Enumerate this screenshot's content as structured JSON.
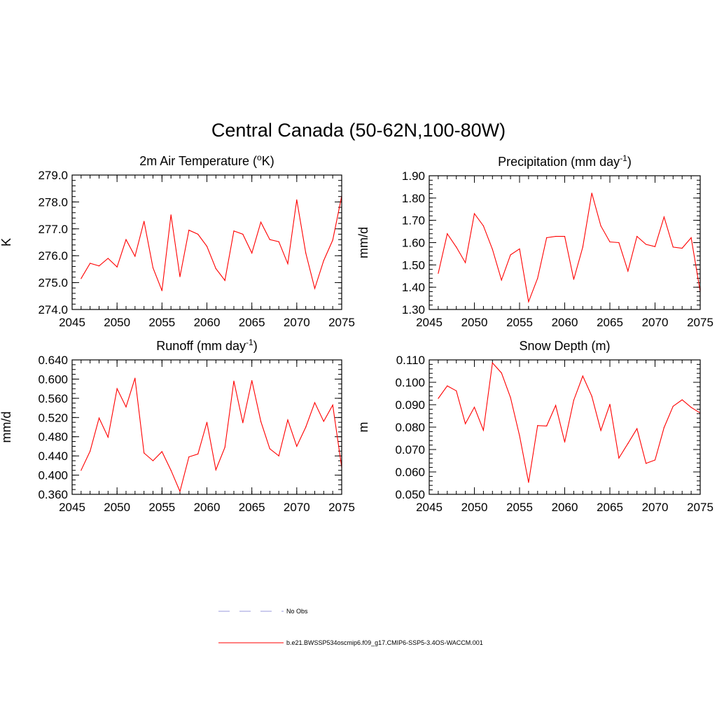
{
  "figure": {
    "title": "Central Canada (50-62N,100-80W)",
    "series_color": "#ff0000",
    "obs_color": "#9999dd"
  },
  "legend": {
    "items": [
      {
        "label": "No Obs",
        "style": "dashed",
        "color": "#9999dd"
      },
      {
        "label": "b.e21.BWSSP534oscmip6.f09_g17.CMIP6-SSP5-3.4OS-WACCM.001",
        "style": "solid",
        "color": "#ff0000"
      }
    ]
  },
  "chart_data": [
    {
      "type": "line",
      "title": "2m Air Temperature (",
      "title_sup": "o",
      "title_post": "K)",
      "ylabel": "K",
      "xlim": [
        2045,
        2075
      ],
      "ylim": [
        274.0,
        279.0
      ],
      "xticks": [
        2045,
        2050,
        2055,
        2060,
        2065,
        2070,
        2075
      ],
      "xtick_labels": [
        "2045",
        "2050",
        "2055",
        "2060",
        "2065",
        "2070",
        "2075"
      ],
      "yticks": [
        274.0,
        275.0,
        276.0,
        277.0,
        278.0,
        279.0
      ],
      "ytick_labels": [
        "274.0",
        "275.0",
        "276.0",
        "277.0",
        "278.0",
        "279.0"
      ],
      "yminor": 0.2,
      "x": [
        2046,
        2047,
        2048,
        2049,
        2050,
        2051,
        2052,
        2053,
        2054,
        2055,
        2056,
        2057,
        2058,
        2059,
        2060,
        2061,
        2062,
        2063,
        2064,
        2065,
        2066,
        2067,
        2068,
        2069,
        2070,
        2071,
        2072,
        2073,
        2074,
        2075
      ],
      "series": [
        {
          "values": [
            275.15,
            275.72,
            275.62,
            275.9,
            275.58,
            276.6,
            275.98,
            277.28,
            275.55,
            274.7,
            277.52,
            275.22,
            276.95,
            276.8,
            276.35,
            275.52,
            275.08,
            276.92,
            276.8,
            276.1,
            277.25,
            276.6,
            276.52,
            275.7,
            278.08,
            276.1,
            274.78,
            275.82,
            276.58,
            278.22
          ]
        }
      ]
    },
    {
      "type": "line",
      "title": "Precipitation (mm day",
      "title_sup": "-1",
      "title_post": ")",
      "ylabel": "mm/d",
      "xlim": [
        2045,
        2075
      ],
      "ylim": [
        1.3,
        1.9
      ],
      "xticks": [
        2045,
        2050,
        2055,
        2060,
        2065,
        2070,
        2075
      ],
      "xtick_labels": [
        "2045",
        "2050",
        "2055",
        "2060",
        "2065",
        "2070",
        "2075"
      ],
      "yticks": [
        1.3,
        1.4,
        1.5,
        1.6,
        1.7,
        1.8,
        1.9
      ],
      "ytick_labels": [
        "1.30",
        "1.40",
        "1.50",
        "1.60",
        "1.70",
        "1.80",
        "1.90"
      ],
      "yminor": 0.02,
      "x": [
        2046,
        2047,
        2048,
        2049,
        2050,
        2051,
        2052,
        2053,
        2054,
        2055,
        2056,
        2057,
        2058,
        2059,
        2060,
        2061,
        2062,
        2063,
        2064,
        2065,
        2066,
        2067,
        2068,
        2069,
        2070,
        2071,
        2072,
        2073,
        2074,
        2075
      ],
      "series": [
        {
          "values": [
            1.462,
            1.64,
            1.58,
            1.51,
            1.73,
            1.675,
            1.57,
            1.432,
            1.545,
            1.572,
            1.335,
            1.44,
            1.622,
            1.628,
            1.628,
            1.435,
            1.58,
            1.822,
            1.675,
            1.603,
            1.6,
            1.472,
            1.628,
            1.592,
            1.582,
            1.715,
            1.58,
            1.575,
            1.622,
            1.38
          ]
        }
      ]
    },
    {
      "type": "line",
      "title": "Runoff (mm day",
      "title_sup": "-1",
      "title_post": ")",
      "ylabel": "mm/d",
      "xlim": [
        2045,
        2075
      ],
      "ylim": [
        0.36,
        0.64
      ],
      "xticks": [
        2045,
        2050,
        2055,
        2060,
        2065,
        2070,
        2075
      ],
      "xtick_labels": [
        "2045",
        "2050",
        "2055",
        "2060",
        "2065",
        "2070",
        "2075"
      ],
      "yticks": [
        0.36,
        0.4,
        0.44,
        0.48,
        0.52,
        0.56,
        0.6,
        0.64
      ],
      "ytick_labels": [
        "0.360",
        "0.400",
        "0.440",
        "0.480",
        "0.520",
        "0.560",
        "0.600",
        "0.640"
      ],
      "yminor": 0.01,
      "x": [
        2046,
        2047,
        2048,
        2049,
        2050,
        2051,
        2052,
        2053,
        2054,
        2055,
        2056,
        2057,
        2058,
        2059,
        2060,
        2061,
        2062,
        2063,
        2064,
        2065,
        2066,
        2067,
        2068,
        2069,
        2070,
        2071,
        2072,
        2073,
        2074,
        2075
      ],
      "series": [
        {
          "values": [
            0.41,
            0.45,
            0.519,
            0.479,
            0.58,
            0.542,
            0.602,
            0.446,
            0.43,
            0.449,
            0.41,
            0.366,
            0.438,
            0.444,
            0.51,
            0.411,
            0.458,
            0.596,
            0.509,
            0.597,
            0.512,
            0.455,
            0.44,
            0.515,
            0.46,
            0.5,
            0.551,
            0.512,
            0.546,
            0.416
          ]
        }
      ]
    },
    {
      "type": "line",
      "title": "Snow Depth (m)",
      "title_sup": "",
      "title_post": "",
      "ylabel": "m",
      "xlim": [
        2045,
        2075
      ],
      "ylim": [
        0.05,
        0.11
      ],
      "xticks": [
        2045,
        2050,
        2055,
        2060,
        2065,
        2070,
        2075
      ],
      "xtick_labels": [
        "2045",
        "2050",
        "2055",
        "2060",
        "2065",
        "2070",
        "2075"
      ],
      "yticks": [
        0.05,
        0.06,
        0.07,
        0.08,
        0.09,
        0.1,
        0.11
      ],
      "ytick_labels": [
        "0.050",
        "0.060",
        "0.070",
        "0.080",
        "0.090",
        "0.100",
        "0.110"
      ],
      "yminor": 0.002,
      "x": [
        2046,
        2047,
        2048,
        2049,
        2050,
        2051,
        2052,
        2053,
        2054,
        2055,
        2056,
        2057,
        2058,
        2059,
        2060,
        2061,
        2062,
        2063,
        2064,
        2065,
        2066,
        2067,
        2068,
        2069,
        2070,
        2071,
        2072,
        2073,
        2074,
        2075
      ],
      "series": [
        {
          "values": [
            0.0928,
            0.0984,
            0.0962,
            0.0815,
            0.0889,
            0.0786,
            0.1087,
            0.1042,
            0.0932,
            0.0762,
            0.0553,
            0.0807,
            0.0805,
            0.0897,
            0.0733,
            0.092,
            0.1028,
            0.0938,
            0.0785,
            0.0902,
            0.0662,
            0.0727,
            0.0793,
            0.0638,
            0.0653,
            0.0798,
            0.0893,
            0.0922,
            0.0888,
            0.0863
          ]
        }
      ]
    }
  ]
}
